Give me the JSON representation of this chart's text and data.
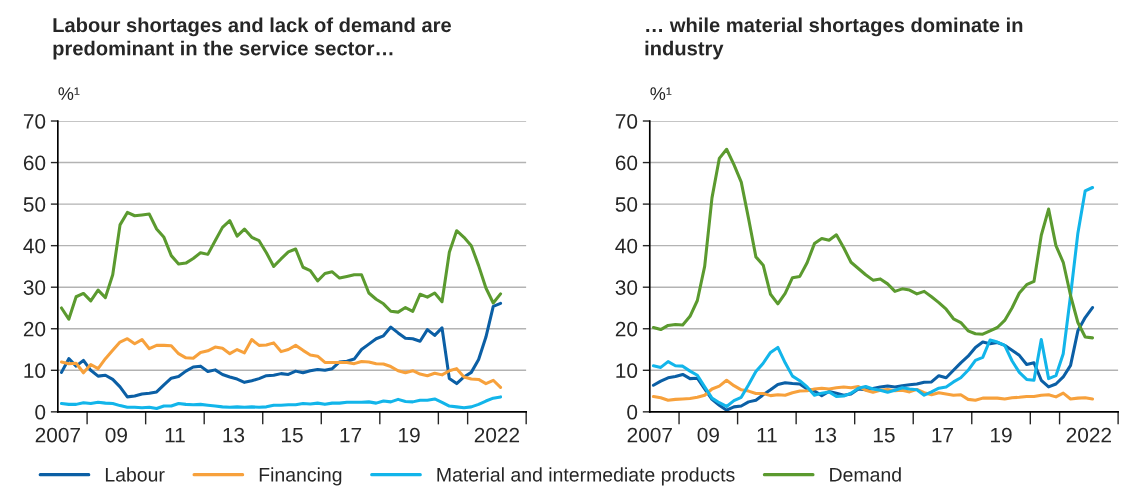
{
  "chart_data": [
    {
      "type": "line",
      "title": "Labour shortages and lack of demand are\npredominant in the service sector…",
      "ylabel": "%¹",
      "x": [
        2007.125,
        2007.375,
        2007.625,
        2007.875,
        2008.125,
        2008.375,
        2008.625,
        2008.875,
        2009.125,
        2009.375,
        2009.625,
        2009.875,
        2010.125,
        2010.375,
        2010.625,
        2010.875,
        2011.125,
        2011.375,
        2011.625,
        2011.875,
        2012.125,
        2012.375,
        2012.625,
        2012.875,
        2013.125,
        2013.375,
        2013.625,
        2013.875,
        2014.125,
        2014.375,
        2014.625,
        2014.875,
        2015.125,
        2015.375,
        2015.625,
        2015.875,
        2016.125,
        2016.375,
        2016.625,
        2016.875,
        2017.125,
        2017.375,
        2017.625,
        2017.875,
        2018.125,
        2018.375,
        2018.625,
        2018.875,
        2019.125,
        2019.375,
        2019.625,
        2019.875,
        2020.125,
        2020.375,
        2020.625,
        2020.875,
        2021.125,
        2021.375,
        2021.625,
        2021.875,
        2022.125
      ],
      "series": [
        {
          "name": "Labour",
          "color": "#0b5fa5",
          "values": [
            9.5,
            12.8,
            11,
            12.4,
            10,
            8.6,
            8.8,
            7.8,
            6,
            3.6,
            3.8,
            4.3,
            4.5,
            4.8,
            6.5,
            8.1,
            8.5,
            9.8,
            10.8,
            11,
            9.7,
            10.1,
            9,
            8.4,
            7.9,
            7.1,
            7.5,
            8,
            8.7,
            8.8,
            9.2,
            9,
            9.8,
            9.4,
            9.9,
            10.2,
            10,
            10.4,
            12,
            12.2,
            12.7,
            15,
            16.3,
            17.6,
            18.3,
            20.4,
            19,
            17.7,
            17.6,
            17,
            19.8,
            18.4,
            20.2,
            8,
            6.8,
            8.4,
            9.5,
            12.6,
            18,
            25.4,
            26.1
          ]
        },
        {
          "name": "Financing",
          "color": "#f7a13c",
          "values": [
            12,
            11.6,
            11.7,
            9.4,
            11.4,
            10.4,
            12.8,
            14.8,
            16.8,
            17.6,
            16.4,
            17.4,
            15.2,
            16,
            16,
            15.9,
            14,
            13,
            12.9,
            14.3,
            14.7,
            15.6,
            15.3,
            14,
            15,
            14.2,
            17.4,
            16,
            16.1,
            16.6,
            14.5,
            15,
            16,
            14.8,
            13.7,
            13.4,
            11.9,
            11.9,
            11.9,
            11.9,
            11.6,
            12.1,
            12,
            11.6,
            11.5,
            10.9,
            9.9,
            9.4,
            9.9,
            9.1,
            8.7,
            9.3,
            8.9,
            9.9,
            10.4,
            8.4,
            7.9,
            7.8,
            6.8,
            7.6,
            5.9
          ]
        },
        {
          "name": "Material and intermediate products",
          "color": "#12b5ea",
          "values": [
            2,
            1.8,
            1.8,
            2.2,
            2,
            2.3,
            2.1,
            2,
            1.5,
            1.1,
            1.1,
            1,
            1.1,
            0.8,
            1.4,
            1.4,
            2,
            1.8,
            1.7,
            1.8,
            1.6,
            1.4,
            1.2,
            1.1,
            1.2,
            1.1,
            1.2,
            1.1,
            1.2,
            1.6,
            1.6,
            1.7,
            1.7,
            2,
            1.9,
            2.1,
            1.8,
            2.1,
            2.1,
            2.3,
            2.3,
            2.3,
            2.4,
            2.1,
            2.6,
            2.4,
            3,
            2.5,
            2.4,
            2.8,
            2.8,
            3.1,
            2.3,
            1.4,
            1.2,
            1,
            1.2,
            1.8,
            2.6,
            3.3,
            3.6
          ]
        },
        {
          "name": "Demand",
          "color": "#5b9a2f",
          "values": [
            25,
            22.3,
            27.7,
            28.5,
            26.7,
            29.3,
            27.5,
            33,
            45,
            48,
            47.2,
            47.4,
            47.6,
            44,
            42,
            37.6,
            35.6,
            35.8,
            36.9,
            38.3,
            37.9,
            41.2,
            44.4,
            46,
            42.3,
            44,
            42,
            41.2,
            38.3,
            35,
            36.8,
            38.5,
            39.2,
            34.8,
            34,
            31.5,
            33.3,
            33.7,
            32.2,
            32.6,
            33,
            33,
            28.6,
            27.1,
            26,
            24.2,
            24,
            25.1,
            24.2,
            28.3,
            27.6,
            28.6,
            26.5,
            38.4,
            43.6,
            42,
            40,
            35.2,
            29.8,
            26.2,
            28.4
          ]
        }
      ],
      "xlim": [
        2007,
        2023
      ],
      "xticks": [
        {
          "value": 2008,
          "label": null
        },
        {
          "value": 2010,
          "label": null
        },
        {
          "value": 2012,
          "label": null
        },
        {
          "value": 2014,
          "label": null
        },
        {
          "value": 2016,
          "label": null
        },
        {
          "value": 2018,
          "label": null
        },
        {
          "value": 2020,
          "label": null
        },
        {
          "value": 2021,
          "label": null
        },
        {
          "value": 2023,
          "label": null
        },
        2007,
        {
          "value": 2009,
          "label": "09"
        },
        {
          "value": 2011,
          "label": "11"
        },
        {
          "value": 2013,
          "label": "13"
        },
        {
          "value": 2015,
          "label": "15"
        },
        {
          "value": 2017,
          "label": "17"
        },
        {
          "value": 2019,
          "label": "19"
        },
        2022
      ],
      "ylim": [
        0,
        70
      ],
      "yticks": [
        0,
        10,
        20,
        30,
        40,
        50,
        60,
        70
      ],
      "grid": "y",
      "legend": "bottom",
      "line_style": "solid"
    },
    {
      "type": "line",
      "title": "… while material shortages dominate in\nindustry",
      "ylabel": "%¹",
      "x": [
        2007.125,
        2007.375,
        2007.625,
        2007.875,
        2008.125,
        2008.375,
        2008.625,
        2008.875,
        2009.125,
        2009.375,
        2009.625,
        2009.875,
        2010.125,
        2010.375,
        2010.625,
        2010.875,
        2011.125,
        2011.375,
        2011.625,
        2011.875,
        2012.125,
        2012.375,
        2012.625,
        2012.875,
        2013.125,
        2013.375,
        2013.625,
        2013.875,
        2014.125,
        2014.375,
        2014.625,
        2014.875,
        2015.125,
        2015.375,
        2015.625,
        2015.875,
        2016.125,
        2016.375,
        2016.625,
        2016.875,
        2017.125,
        2017.375,
        2017.625,
        2017.875,
        2018.125,
        2018.375,
        2018.625,
        2018.875,
        2019.125,
        2019.375,
        2019.625,
        2019.875,
        2020.125,
        2020.375,
        2020.625,
        2020.875,
        2021.125,
        2021.375,
        2021.625,
        2021.875,
        2022.125
      ],
      "series": [
        {
          "color": "#0b5fa5",
          "values": [
            6.4,
            7.4,
            8.2,
            8.5,
            9,
            8,
            8.1,
            5.5,
            3,
            1.6,
            0.4,
            1.2,
            1.4,
            2.4,
            2.8,
            4.1,
            5.3,
            6.6,
            7,
            6.8,
            6.7,
            5.5,
            5,
            3.9,
            4.9,
            4.5,
            4,
            4.3,
            5.5,
            5.3,
            5.6,
            6,
            6.2,
            6,
            6.3,
            6.5,
            6.7,
            7.1,
            7.2,
            8.7,
            8.2,
            10,
            11.8,
            13.4,
            15.5,
            16.8,
            16.4,
            16.7,
            16,
            14.8,
            13.6,
            11.4,
            11.8,
            7.6,
            6,
            6.7,
            8.4,
            11.2,
            19.5,
            22.7,
            25.1
          ]
        },
        {
          "color": "#f7a13c",
          "values": [
            3.7,
            3.4,
            2.8,
            3,
            3.1,
            3.2,
            3.5,
            4,
            5.5,
            6.2,
            7.6,
            6.3,
            5.3,
            5,
            4.4,
            4.4,
            3.9,
            4.1,
            4,
            4.6,
            5,
            5.1,
            5.5,
            5.7,
            5.5,
            5.8,
            6,
            5.8,
            6.1,
            5.2,
            4.7,
            5.2,
            5.4,
            5.1,
            5.2,
            4.8,
            5.4,
            4.6,
            4.1,
            4.6,
            4.3,
            4,
            4.1,
            3,
            2.8,
            3.3,
            3.3,
            3.3,
            3.1,
            3.4,
            3.5,
            3.7,
            3.7,
            4,
            4.1,
            3.6,
            4.5,
            3.1,
            3.3,
            3.4,
            3.1
          ]
        },
        {
          "color": "#12b5ea",
          "values": [
            11.1,
            10.7,
            12.1,
            11.1,
            11,
            9.8,
            8.8,
            6,
            3.3,
            2.2,
            1.3,
            2.7,
            3.5,
            6.5,
            9.7,
            11.7,
            14.3,
            15.5,
            11.8,
            8.6,
            7.5,
            6,
            4,
            4.5,
            4.8,
            3.7,
            3.8,
            4.5,
            5.7,
            6.1,
            5.5,
            5.2,
            4.7,
            5.2,
            5.8,
            5.5,
            5.3,
            4,
            4.8,
            5.7,
            6,
            7.2,
            8.2,
            10,
            12.4,
            13.1,
            17.3,
            16.8,
            16,
            12.3,
            9.5,
            7.8,
            7.6,
            17.4,
            8,
            8.7,
            14,
            28,
            43,
            53.2,
            54
          ]
        },
        {
          "color": "#5b9a2f",
          "values": [
            20.3,
            19.8,
            20.8,
            21,
            20.9,
            23,
            26.8,
            35,
            51.5,
            61,
            63.2,
            59.5,
            55.3,
            46.5,
            37.3,
            35.3,
            28.3,
            26,
            28.5,
            32.3,
            32.6,
            35.9,
            40.5,
            41.7,
            41.3,
            42.6,
            39.5,
            36,
            34.5,
            33,
            31.7,
            32,
            30.8,
            29,
            29.6,
            29.3,
            28.4,
            29,
            27.7,
            26.3,
            24.7,
            22.4,
            21.5,
            19.5,
            18.8,
            18.7,
            19.5,
            20.3,
            22,
            25,
            28.6,
            30.6,
            31.4,
            42.5,
            48.8,
            40,
            36,
            28,
            21.5,
            18,
            17.8
          ]
        }
      ],
      "xlim": [
        2007,
        2023
      ],
      "xticks": [
        {
          "value": 2008,
          "label": null
        },
        {
          "value": 2010,
          "label": null
        },
        {
          "value": 2012,
          "label": null
        },
        {
          "value": 2014,
          "label": null
        },
        {
          "value": 2016,
          "label": null
        },
        {
          "value": 2018,
          "label": null
        },
        {
          "value": 2020,
          "label": null
        },
        {
          "value": 2021,
          "label": null
        },
        {
          "value": 2023,
          "label": null
        },
        2007,
        {
          "value": 2009,
          "label": "09"
        },
        {
          "value": 2011,
          "label": "11"
        },
        {
          "value": 2013,
          "label": "13"
        },
        {
          "value": 2015,
          "label": "15"
        },
        {
          "value": 2017,
          "label": "17"
        },
        {
          "value": 2019,
          "label": "19"
        },
        2022
      ],
      "ylim": [
        0,
        70
      ],
      "yticks": [
        0,
        10,
        20,
        30,
        40,
        50,
        60,
        70
      ],
      "grid": "y",
      "line_style": "solid"
    }
  ]
}
